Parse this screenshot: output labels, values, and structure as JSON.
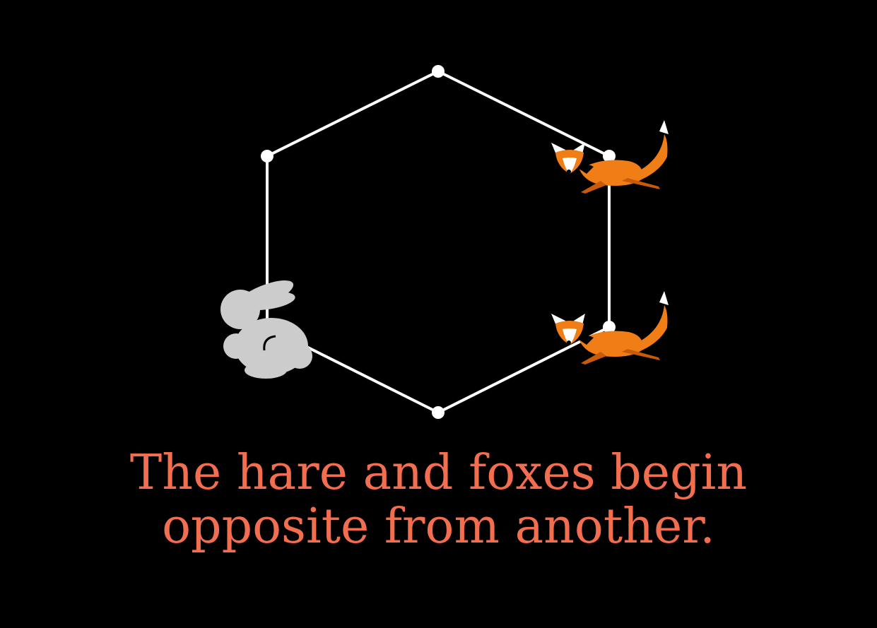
{
  "caption": {
    "line1": "The hare and foxes begin",
    "line2": "opposite from another."
  },
  "colors": {
    "background": "#000000",
    "graph": "#ffffff",
    "caption": "#f26e4f",
    "hare": "#cccccc",
    "fox": "#f07d16",
    "fox_dark": "#c95a0a"
  },
  "characters": {
    "hare": {
      "icon": "hare-icon",
      "vertex": "left-bottom"
    },
    "foxes": [
      {
        "icon": "fox-icon",
        "vertex": "right-top"
      },
      {
        "icon": "fox-icon",
        "vertex": "right-bottom"
      }
    ]
  }
}
